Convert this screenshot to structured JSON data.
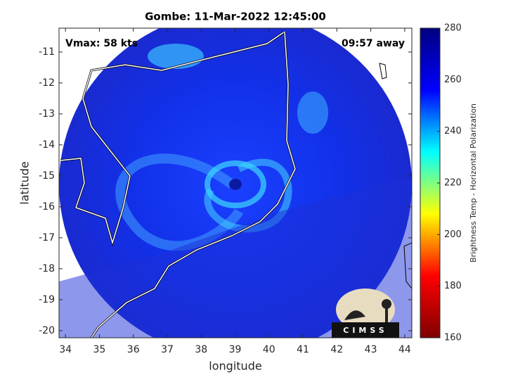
{
  "chart_data": {
    "type": "map",
    "title": "Gombe: 11-Mar-2022 12:45:00",
    "annotations": [
      "Vmax: 58 kts",
      "09:57 away"
    ],
    "xlabel": "longitude",
    "ylabel": "latitude",
    "xlim": [
      33.81,
      44.21
    ],
    "xticks": [
      34,
      35,
      36,
      37,
      38,
      39,
      40,
      41,
      42,
      43,
      44
    ],
    "ylim": [
      -20.23,
      -10.23
    ],
    "yticks": [
      -20,
      -19,
      -18,
      -17,
      -16,
      -15,
      -14,
      -13,
      -12,
      -11
    ],
    "colorbar": {
      "label": "Brightness Temp - Horizontal Polarization",
      "lim": [
        160,
        280
      ],
      "ticks": [
        160,
        180,
        200,
        220,
        240,
        260,
        280
      ],
      "colormap": [
        "#7f0000",
        "#ff0000",
        "#ffff00",
        "#00ffff",
        "#0000ff",
        "#00007f"
      ]
    },
    "logo": "CIMSS"
  }
}
